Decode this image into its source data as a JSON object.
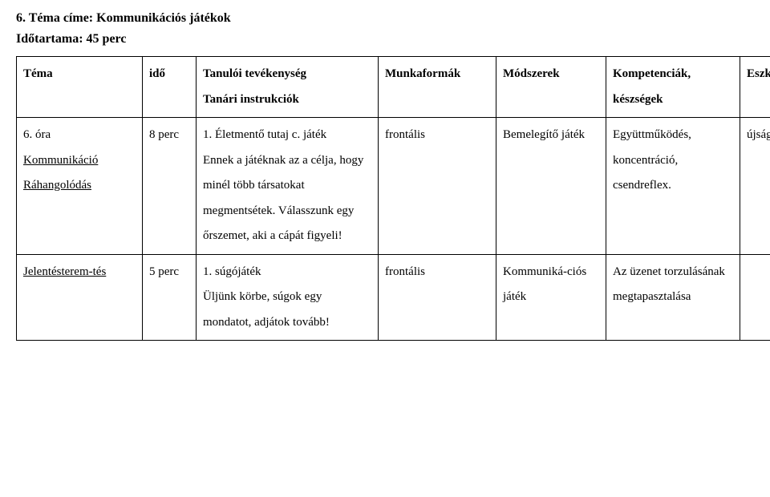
{
  "heading": {
    "topic_title_line": "6. Téma címe: Kommunikációs játékok",
    "duration_line": "Időtartama: 45 perc"
  },
  "table": {
    "header": {
      "tema": "Téma",
      "ido": "idő",
      "col3_l1": "Tanulói tevékenység",
      "col3_l2": "Tanári instrukciók",
      "col4": "Munkaformák",
      "col5": "Módszerek",
      "col6_l1": "Kompetenciák,",
      "col6_l2": "készségek",
      "col7": "Eszközök"
    },
    "row1": {
      "tema_l1": "6. óra",
      "tema_l2": "Kommunikáció",
      "tema_l3": "Ráhangolódás",
      "ido": "8 perc",
      "tev": "1. Életmentő tutaj c. játék\nEnnek a játéknak az a célja, hogy minél több társatokat megmentsétek. Válasszunk egy őrszemet, aki a cápát figyeli!",
      "munka": "frontális",
      "modszer": "Bemelegítő játék",
      "komp": "Együttműködés, koncentráció, csendreflex.",
      "eszk": "újságpapírok"
    },
    "row2": {
      "tema": "Jelentésterem-tés",
      "ido": "5 perc",
      "tev": "1. súgójáték\nÜljünk körbe, súgok egy mondatot, adjátok tovább!",
      "munka": "frontális",
      "modszer": "Kommuniká-ciós játék",
      "komp": "Az üzenet torzulásának megtapasztalása",
      "eszk": ""
    }
  }
}
